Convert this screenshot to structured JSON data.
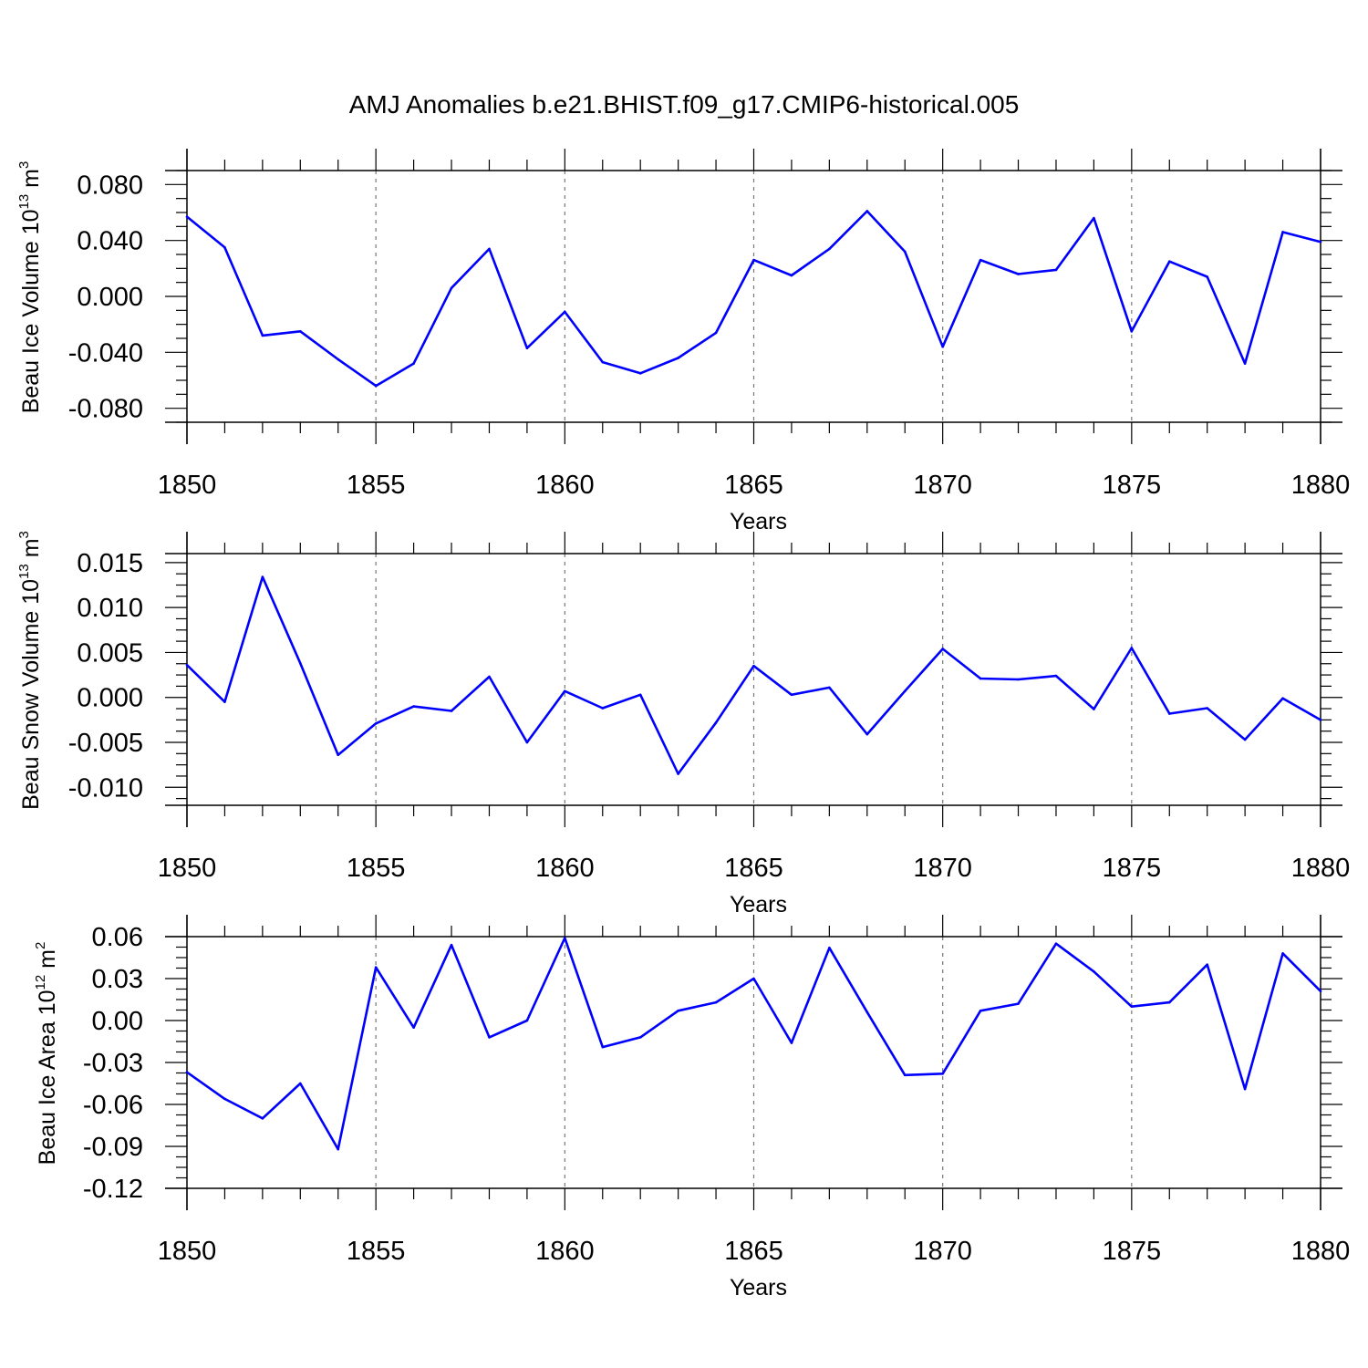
{
  "title": "AMJ Anomalies b.e21.BHIST.f09_g17.CMIP6-historical.005",
  "colors": {
    "line": "#0000ff",
    "axis": "#000000",
    "grid": "#777777"
  },
  "chart_data": [
    {
      "type": "line",
      "xlabel": "Years",
      "ylabel": {
        "text": "Beau Ice Volume 10",
        "exp": "13",
        "unit": " m",
        "unit_exp": "3"
      },
      "xlim": [
        1850,
        1880
      ],
      "ylim": [
        -0.09,
        0.09
      ],
      "xticks": [
        1850,
        1855,
        1860,
        1865,
        1870,
        1875,
        1880
      ],
      "yticks": [
        -0.08,
        -0.04,
        0.0,
        0.04,
        0.08
      ],
      "ytick_labels": [
        "-0.080",
        "-0.040",
        "0.000",
        "0.040",
        "0.080"
      ],
      "grid": "vertical dashed at major x ticks",
      "x": [
        1850,
        1851,
        1852,
        1853,
        1854,
        1855,
        1856,
        1857,
        1858,
        1859,
        1860,
        1861,
        1862,
        1863,
        1864,
        1865,
        1866,
        1867,
        1868,
        1869,
        1870,
        1871,
        1872,
        1873,
        1874,
        1875,
        1876,
        1877,
        1878,
        1879,
        1880
      ],
      "values": [
        0.057,
        0.035,
        -0.028,
        -0.025,
        -0.045,
        -0.064,
        -0.048,
        0.006,
        0.034,
        -0.037,
        -0.011,
        -0.047,
        -0.055,
        -0.044,
        -0.026,
        0.026,
        0.015,
        0.034,
        0.061,
        0.032,
        -0.036,
        0.026,
        0.016,
        0.019,
        0.056,
        -0.025,
        0.025,
        0.014,
        -0.048,
        0.046,
        0.039
      ]
    },
    {
      "type": "line",
      "xlabel": "Years",
      "ylabel": {
        "text": "Beau Snow Volume 10",
        "exp": "13",
        "unit": " m",
        "unit_exp": "3"
      },
      "xlim": [
        1850,
        1880
      ],
      "ylim": [
        -0.012,
        0.016
      ],
      "xticks": [
        1850,
        1855,
        1860,
        1865,
        1870,
        1875,
        1880
      ],
      "yticks": [
        -0.01,
        -0.005,
        0.0,
        0.005,
        0.01,
        0.015
      ],
      "ytick_labels": [
        "-0.010",
        "-0.005",
        "0.000",
        "0.005",
        "0.010",
        "0.015"
      ],
      "grid": "vertical dashed at major x ticks",
      "x": [
        1850,
        1851,
        1852,
        1853,
        1854,
        1855,
        1856,
        1857,
        1858,
        1859,
        1860,
        1861,
        1862,
        1863,
        1864,
        1865,
        1866,
        1867,
        1868,
        1869,
        1870,
        1871,
        1872,
        1873,
        1874,
        1875,
        1876,
        1877,
        1878,
        1879,
        1880
      ],
      "values": [
        0.0036,
        -0.0005,
        0.0134,
        0.0038,
        -0.0064,
        -0.0029,
        -0.001,
        -0.0015,
        0.0023,
        -0.005,
        0.0007,
        -0.0012,
        0.0003,
        -0.0085,
        -0.0028,
        0.0035,
        0.0003,
        0.0011,
        -0.0041,
        0.0007,
        0.0054,
        0.0021,
        0.002,
        0.0024,
        -0.0013,
        0.0055,
        -0.0018,
        -0.0012,
        -0.0047,
        -0.0001,
        -0.0025
      ]
    },
    {
      "type": "line",
      "xlabel": "Years",
      "ylabel": {
        "text": "Beau Ice Area 10",
        "exp": "12",
        "unit": " m",
        "unit_exp": "2"
      },
      "xlim": [
        1850,
        1880
      ],
      "ylim": [
        -0.12,
        0.06
      ],
      "xticks": [
        1850,
        1855,
        1860,
        1865,
        1870,
        1875,
        1880
      ],
      "yticks": [
        -0.12,
        -0.09,
        -0.06,
        -0.03,
        0.0,
        0.03,
        0.06
      ],
      "ytick_labels": [
        "-0.12",
        "-0.09",
        "-0.06",
        "-0.03",
        "0.00",
        "0.03",
        "0.06"
      ],
      "grid": "vertical dashed at major x ticks",
      "x": [
        1850,
        1851,
        1852,
        1853,
        1854,
        1855,
        1856,
        1857,
        1858,
        1859,
        1860,
        1861,
        1862,
        1863,
        1864,
        1865,
        1866,
        1867,
        1868,
        1869,
        1870,
        1871,
        1872,
        1873,
        1874,
        1875,
        1876,
        1877,
        1878,
        1879,
        1880
      ],
      "values": [
        -0.037,
        -0.056,
        -0.07,
        -0.045,
        -0.092,
        0.038,
        -0.005,
        0.054,
        -0.012,
        0.0,
        0.059,
        -0.019,
        -0.012,
        0.007,
        0.013,
        0.03,
        -0.016,
        0.052,
        0.006,
        -0.039,
        -0.038,
        0.007,
        0.012,
        0.055,
        0.035,
        0.01,
        0.013,
        0.04,
        -0.049,
        0.048,
        0.021
      ]
    }
  ]
}
